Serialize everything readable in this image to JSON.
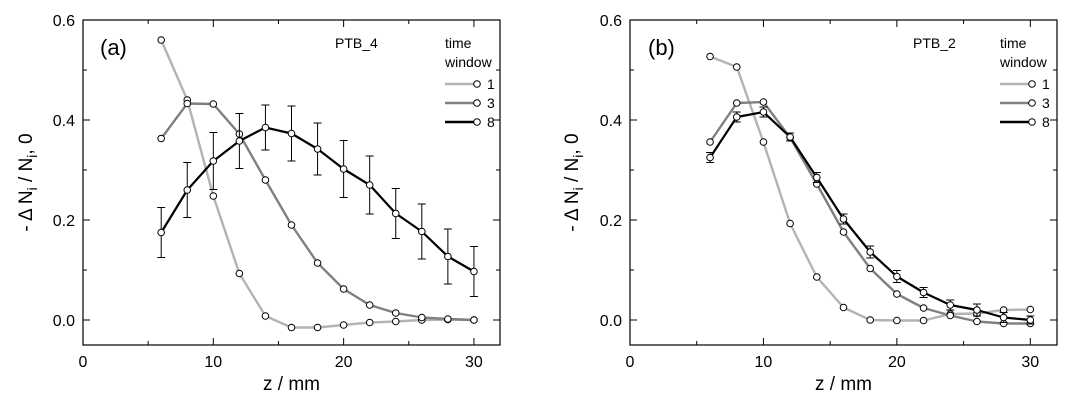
{
  "figure": {
    "panels": [
      {
        "panel_label": "(a)",
        "dataset_label": "PTB_4",
        "legend_title": [
          "time",
          "window"
        ]
      },
      {
        "panel_label": "(b)",
        "dataset_label": "PTB_2",
        "legend_title": [
          "time",
          "window"
        ]
      }
    ]
  },
  "chart_data": [
    {
      "type": "line",
      "title": "",
      "xlabel": "z / mm",
      "ylabel": "- Δ N_i / N_i, 0",
      "xlim": [
        0,
        32
      ],
      "ylim": [
        -0.05,
        0.6
      ],
      "xticks": [
        0,
        10,
        20,
        30
      ],
      "yticks": [
        0.0,
        0.2,
        0.4,
        0.6
      ],
      "x_minor_ticks": [
        5,
        15,
        25
      ],
      "y_minor_ticks": [
        0.1,
        0.3,
        0.5
      ],
      "x": [
        6,
        8,
        10,
        12,
        14,
        16,
        18,
        20,
        22,
        24,
        26,
        28,
        30
      ],
      "grid": false,
      "legend_position": "top-right",
      "series": [
        {
          "name": "1",
          "color": "#b3b3b3",
          "values": [
            0.56,
            0.44,
            0.248,
            0.093,
            0.008,
            -0.015,
            -0.015,
            -0.01,
            -0.005,
            -0.003,
            0.0,
            0.001,
            0.0
          ]
        },
        {
          "name": "3",
          "color": "#808080",
          "values": [
            0.363,
            0.433,
            0.432,
            0.372,
            0.28,
            0.19,
            0.114,
            0.062,
            0.03,
            0.014,
            0.005,
            0.002,
            0.0
          ]
        },
        {
          "name": "8",
          "color": "#000000",
          "values": [
            0.175,
            0.26,
            0.318,
            0.358,
            0.385,
            0.373,
            0.342,
            0.302,
            0.27,
            0.213,
            0.177,
            0.127,
            0.097
          ],
          "error": [
            0.05,
            0.055,
            0.057,
            0.055,
            0.045,
            0.055,
            0.052,
            0.057,
            0.058,
            0.05,
            0.055,
            0.055,
            0.05
          ]
        }
      ]
    },
    {
      "type": "line",
      "title": "",
      "xlabel": "z / mm",
      "ylabel": "- Δ N_i / N_i, 0",
      "xlim": [
        0,
        32
      ],
      "ylim": [
        -0.05,
        0.6
      ],
      "xticks": [
        0,
        10,
        20,
        30
      ],
      "yticks": [
        0.0,
        0.2,
        0.4,
        0.6
      ],
      "x_minor_ticks": [
        5,
        15,
        25
      ],
      "y_minor_ticks": [
        0.1,
        0.3,
        0.5
      ],
      "x": [
        6,
        8,
        10,
        12,
        14,
        16,
        18,
        20,
        22,
        24,
        26,
        28,
        30
      ],
      "grid": false,
      "legend_position": "top-right",
      "series": [
        {
          "name": "1",
          "color": "#b3b3b3",
          "values": [
            0.527,
            0.506,
            0.356,
            0.193,
            0.086,
            0.025,
            0.0,
            -0.001,
            -0.001,
            0.012,
            0.013,
            0.02,
            0.021
          ]
        },
        {
          "name": "3",
          "color": "#808080",
          "values": [
            0.356,
            0.434,
            0.436,
            0.365,
            0.272,
            0.176,
            0.103,
            0.052,
            0.024,
            0.009,
            -0.003,
            -0.007,
            -0.007
          ]
        },
        {
          "name": "8",
          "color": "#000000",
          "values": [
            0.325,
            0.406,
            0.416,
            0.366,
            0.285,
            0.202,
            0.136,
            0.087,
            0.055,
            0.03,
            0.02,
            0.005,
            0.0
          ],
          "error": [
            0.01,
            0.01,
            0.01,
            0.008,
            0.01,
            0.01,
            0.012,
            0.012,
            0.01,
            0.01,
            0.012,
            0.01,
            0.008
          ]
        }
      ]
    }
  ]
}
